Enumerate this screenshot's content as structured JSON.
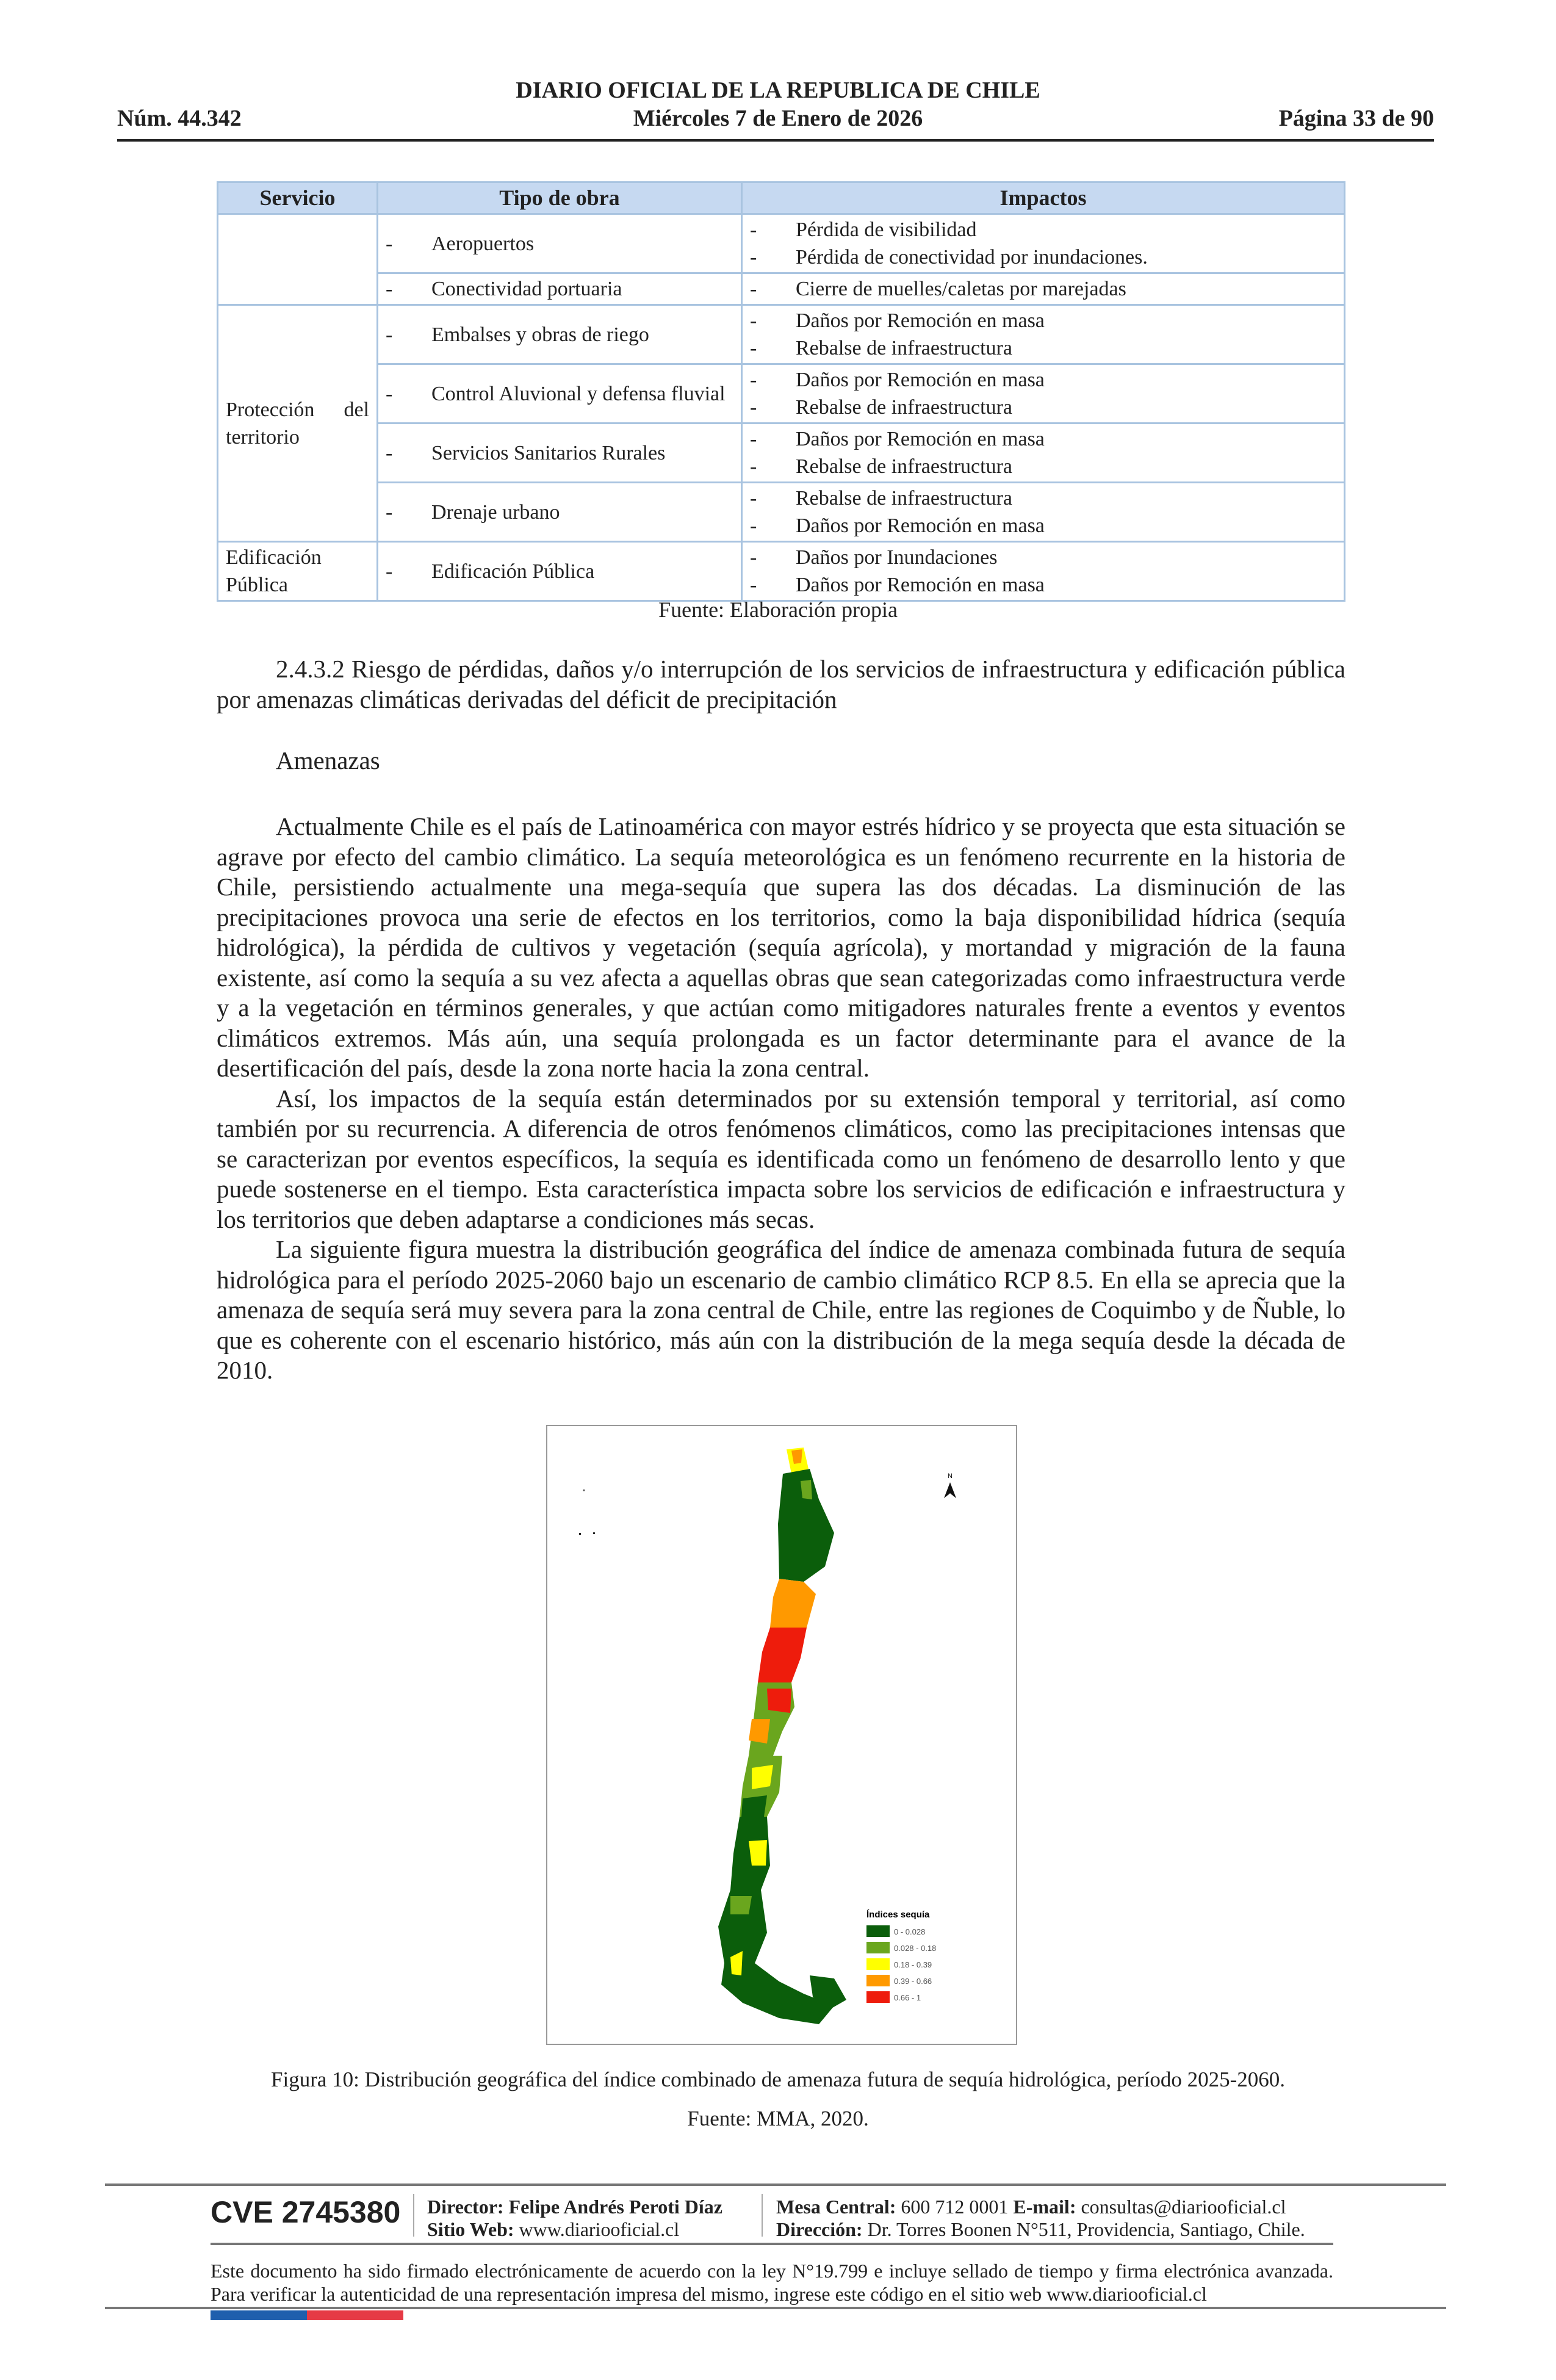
{
  "header": {
    "number": "Núm. 44.342",
    "title": "DIARIO OFICIAL DE LA REPUBLICA DE CHILE",
    "date": "Miércoles 7 de Enero de 2026",
    "page": "Página 33 de 90"
  },
  "table": {
    "headers": [
      "Servicio",
      "Tipo de obra",
      "Impactos"
    ],
    "groups": [
      {
        "servicio": "",
        "rows": [
          {
            "tipo": "Aeropuertos",
            "impactos": [
              "Pérdida de visibilidad",
              "Pérdida de conectividad por inundaciones."
            ]
          },
          {
            "tipo": "Conectividad portuaria",
            "impactos": [
              "Cierre de muelles/caletas por marejadas"
            ]
          }
        ]
      },
      {
        "servicio": "Protección del territorio",
        "rows": [
          {
            "tipo": "Embalses y obras de riego",
            "impactos": [
              "Daños por Remoción en masa",
              "Rebalse de infraestructura"
            ]
          },
          {
            "tipo": "Control Aluvional y defensa fluvial",
            "impactos": [
              "Daños por Remoción en masa",
              "Rebalse de infraestructura"
            ]
          },
          {
            "tipo": "Servicios Sanitarios Rurales",
            "impactos": [
              "Daños por Remoción en masa",
              "Rebalse de infraestructura"
            ]
          },
          {
            "tipo": "Drenaje urbano",
            "impactos": [
              "Rebalse de infraestructura",
              "Daños por Remoción en masa"
            ]
          }
        ]
      },
      {
        "servicio": "Edificación Pública",
        "rows": [
          {
            "tipo": "Edificación Pública",
            "impactos": [
              "Daños por Inundaciones",
              "Daños por Remoción en masa"
            ]
          }
        ]
      }
    ],
    "source": "Fuente: Elaboración propia"
  },
  "section": {
    "heading": "2.4.3.2 Riesgo de pérdidas, daños y/o interrupción de los servicios de infraestructura y edificación pública por amenazas climáticas derivadas del déficit de precipitación",
    "subheading": "Amenazas",
    "paragraphs": [
      "Actualmente Chile es el país de Latinoamérica con mayor estrés hídrico y se proyecta que esta situación se agrave por efecto del cambio climático. La sequía meteorológica es un fenómeno recurrente en la historia de Chile, persistiendo actualmente una mega-sequía que supera las dos décadas. La disminución de las precipitaciones provoca una serie de efectos en los territorios, como la baja disponibilidad hídrica (sequía hidrológica), la pérdida de cultivos y vegetación (sequía agrícola), y mortandad y migración de la fauna existente, así como la sequía a su vez afecta a aquellas obras que sean categorizadas como infraestructura verde y a la vegetación en términos generales, y que actúan como mitigadores naturales frente a eventos y eventos climáticos extremos. Más aún, una sequía prolongada es un factor determinante para el avance de la desertificación del país, desde la zona norte hacia la zona central.",
      "Así, los impactos de la sequía están determinados por su extensión temporal y territorial, así como también por su recurrencia. A diferencia de otros fenómenos climáticos, como las precipitaciones intensas que se caracterizan por eventos específicos, la sequía es identificada como un fenómeno de desarrollo lento y que puede sostenerse en el tiempo. Esta característica impacta sobre los servicios de edificación e infraestructura y los territorios que deben adaptarse a condiciones más secas.",
      "La siguiente figura muestra la distribución geográfica del índice de amenaza combinada futura de sequía hidrológica para el período 2025-2060 bajo un escenario de cambio climático RCP 8.5. En ella se aprecia que la amenaza de sequía será muy severa para la zona central de Chile, entre las regiones de Coquimbo y de Ñuble, lo que es coherente con el escenario histórico, más aún con la distribución de la mega sequía desde la década de 2010."
    ]
  },
  "figure": {
    "north_label": "N",
    "legend_title": "Índices sequía",
    "legend": [
      {
        "label": "0 - 0.028",
        "color": "#0b5e0b"
      },
      {
        "label": "0.028 - 0.18",
        "color": "#6aa61e"
      },
      {
        "label": "0.18 - 0.39",
        "color": "#ffff00"
      },
      {
        "label": "0.39 - 0.66",
        "color": "#ff9900"
      },
      {
        "label": "0.66 - 1",
        "color": "#ee1c0c"
      }
    ],
    "caption": "Figura 10: Distribución geográfica del índice combinado de amenaza futura de sequía hidrológica, período 2025-2060.",
    "source": "Fuente: MMA, 2020."
  },
  "footer": {
    "cve": "CVE 2745380",
    "director_label": "Director:",
    "director": "Felipe Andrés Peroti Díaz",
    "web_label": "Sitio Web:",
    "web": "www.diariooficial.cl",
    "mesa_label": "Mesa Central:",
    "mesa": "600 712 0001",
    "email_label": "E-mail:",
    "email": "consultas@diariooficial.cl",
    "dir_label": "Dirección:",
    "dir": "Dr. Torres Boonen N°511, Providencia, Santiago, Chile.",
    "notice": "Este documento ha sido firmado electrónicamente de acuerdo con la ley N°19.799 e incluye sellado de tiempo y firma electrónica avanzada. Para verificar la autenticidad de una representación impresa del mismo, ingrese este código en el sitio web www.diariooficial.cl",
    "flag_colors": [
      "#1f5fad",
      "#e63a45"
    ]
  }
}
